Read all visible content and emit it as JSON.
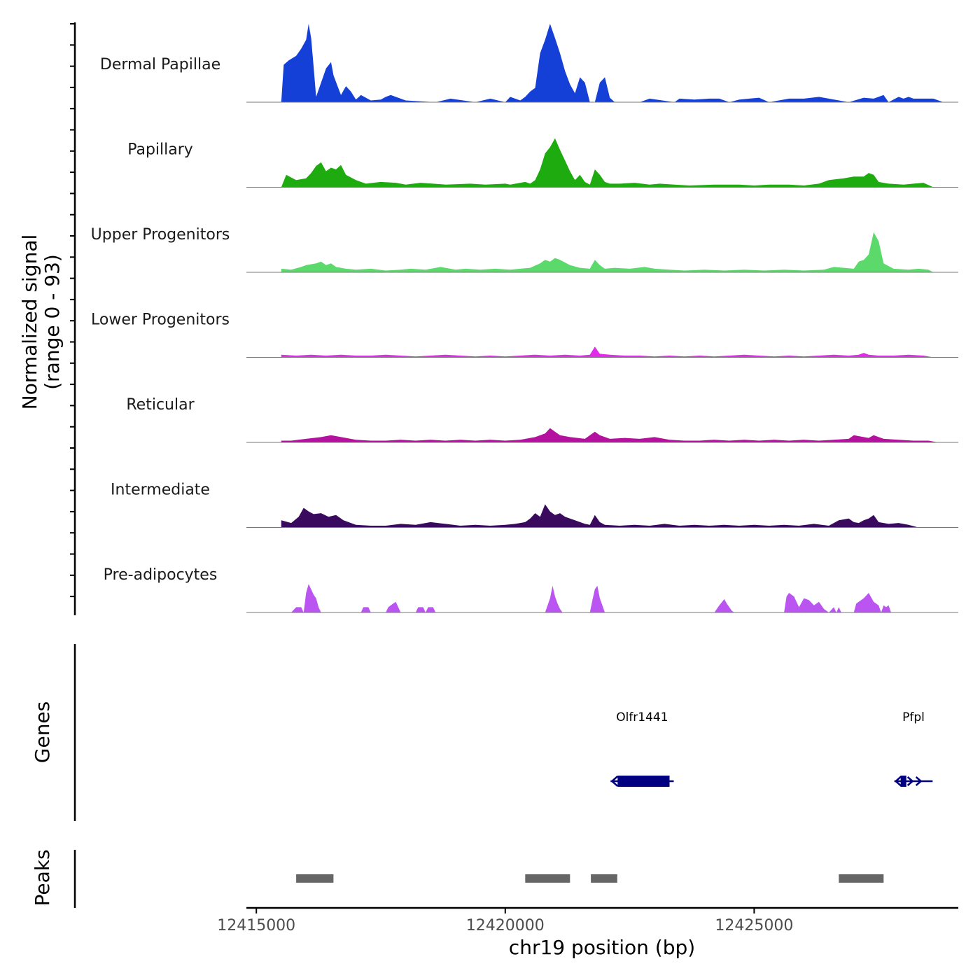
{
  "chart_data": {
    "type": "area",
    "title": "",
    "xlabel": "chr19 position (bp)",
    "ylabel": "Normalized signal",
    "ylabel_range": "(range 0 - 93)",
    "ylim": [
      0,
      93
    ],
    "xlim": [
      12414800,
      12429100
    ],
    "x_ticks": [
      12415000,
      12420000,
      12425000
    ],
    "x_tick_labels": [
      "12415000",
      "12420000",
      "12425000"
    ],
    "series": [
      {
        "name": "Dermal Papillae",
        "color": "#1540d8",
        "x": [
          12415500,
          12415550,
          12415650,
          12415800,
          12415900,
          12416000,
          12416050,
          12416100,
          12416150,
          12416200,
          12416300,
          12416400,
          12416500,
          12416550,
          12416700,
          12416800,
          12416900,
          12417000,
          12417100,
          12417300,
          12417500,
          12417600,
          12417700,
          12418000,
          12418600,
          12418900,
          12419400,
          12419700,
          12420000,
          12420100,
          12420300,
          12420400,
          12420500,
          12420600,
          12420700,
          12420800,
          12420900,
          12421000,
          12421100,
          12421200,
          12421300,
          12421400,
          12421500,
          12421600,
          12421700,
          12421800,
          12421900,
          12422000,
          12422100,
          12422200,
          12422700,
          12422900,
          12423400,
          12423500,
          12423800,
          12424100,
          12424300,
          12424500,
          12424700,
          12424900,
          12425100,
          12425300,
          12425700,
          12426000,
          12426300,
          12426900,
          12427200,
          12427400,
          12427600,
          12427700,
          12427900,
          12428000,
          12428100,
          12428200,
          12428400,
          12428600,
          12428800
        ],
        "y": [
          0,
          42,
          47,
          52,
          60,
          70,
          88,
          72,
          40,
          6,
          22,
          38,
          45,
          30,
          8,
          18,
          12,
          3,
          8,
          2,
          3,
          6,
          8,
          2,
          0,
          4,
          0,
          4,
          0,
          6,
          2,
          6,
          12,
          16,
          55,
          70,
          88,
          72,
          55,
          35,
          20,
          10,
          28,
          22,
          0,
          0,
          22,
          28,
          5,
          0,
          0,
          4,
          0,
          4,
          3,
          4,
          4,
          0,
          3,
          4,
          5,
          0,
          4,
          4,
          6,
          0,
          5,
          4,
          8,
          0,
          6,
          4,
          6,
          4,
          4,
          4,
          0
        ]
      },
      {
        "name": "Papillary",
        "color": "#1dab0f",
        "x": [
          12415500,
          12415600,
          12415800,
          12416000,
          12416100,
          12416200,
          12416300,
          12416400,
          12416500,
          12416600,
          12416700,
          12416800,
          12417000,
          12417200,
          12417500,
          12417800,
          12418000,
          12418300,
          12418800,
          12419300,
          12419600,
          12420000,
          12420100,
          12420400,
          12420500,
          12420600,
          12420700,
          12420800,
          12420900,
          12421000,
          12421100,
          12421200,
          12421300,
          12421400,
          12421500,
          12421600,
          12421700,
          12421800,
          12421900,
          12422000,
          12422100,
          12422300,
          12422600,
          12422900,
          12423100,
          12423400,
          12423700,
          12424200,
          12424700,
          12425000,
          12425300,
          12425700,
          12426000,
          12426300,
          12426500,
          12426800,
          12427000,
          12427200,
          12427300,
          12427400,
          12427500,
          12427700,
          12428000,
          12428200,
          12428400,
          12428600
        ],
        "y": [
          0,
          14,
          8,
          10,
          16,
          24,
          28,
          18,
          22,
          20,
          25,
          14,
          8,
          4,
          6,
          5,
          3,
          5,
          3,
          4,
          3,
          4,
          3,
          6,
          4,
          8,
          20,
          38,
          45,
          55,
          42,
          30,
          18,
          8,
          14,
          6,
          3,
          20,
          14,
          6,
          4,
          4,
          5,
          3,
          4,
          3,
          2,
          3,
          3,
          2,
          3,
          3,
          2,
          4,
          8,
          10,
          12,
          12,
          16,
          14,
          6,
          4,
          3,
          4,
          5,
          0
        ]
      },
      {
        "name": "Upper Progenitors",
        "color": "#5bd96b",
        "x": [
          12415500,
          12415700,
          12415900,
          12416000,
          12416200,
          12416300,
          12416400,
          12416500,
          12416600,
          12416800,
          12417000,
          12417300,
          12417600,
          12417900,
          12418100,
          12418400,
          12418700,
          12419000,
          12419200,
          12419500,
          12419800,
          12420100,
          12420300,
          12420500,
          12420700,
          12420800,
          12420900,
          12421000,
          12421100,
          12421300,
          12421500,
          12421700,
          12421800,
          12421900,
          12422000,
          12422200,
          12422500,
          12422800,
          12423000,
          12423300,
          12423600,
          12424000,
          12424400,
          12424800,
          12425200,
          12425600,
          12426000,
          12426400,
          12426600,
          12426800,
          12427000,
          12427100,
          12427200,
          12427300,
          12427400,
          12427500,
          12427600,
          12427800,
          12428100,
          12428300,
          12428500,
          12428600
        ],
        "y": [
          4,
          3,
          6,
          8,
          10,
          12,
          8,
          10,
          6,
          4,
          3,
          4,
          2,
          3,
          4,
          3,
          6,
          3,
          4,
          3,
          4,
          3,
          4,
          5,
          10,
          14,
          12,
          16,
          14,
          8,
          5,
          4,
          14,
          8,
          4,
          5,
          4,
          6,
          4,
          3,
          2,
          3,
          2,
          3,
          2,
          3,
          2,
          3,
          6,
          5,
          4,
          12,
          14,
          20,
          45,
          35,
          10,
          4,
          3,
          4,
          3,
          0
        ]
      },
      {
        "name": "Lower Progenitors",
        "color": "#e02ce8",
        "x": [
          12415500,
          12415800,
          12416100,
          12416400,
          12416700,
          12417000,
          12417300,
          12417600,
          12417900,
          12418200,
          12418500,
          12418800,
          12419100,
          12419400,
          12419700,
          12420000,
          12420300,
          12420600,
          12420900,
          12421200,
          12421500,
          12421700,
          12421800,
          12421900,
          12422100,
          12422400,
          12422700,
          12423000,
          12423300,
          12423600,
          12423900,
          12424200,
          12424500,
          12424800,
          12425100,
          12425400,
          12425700,
          12426000,
          12426300,
          12426600,
          12426900,
          12427100,
          12427200,
          12427300,
          12427500,
          12427800,
          12428100,
          12428400,
          12428600
        ],
        "y": [
          3,
          2,
          3,
          2,
          3,
          2,
          2,
          3,
          2,
          1,
          2,
          3,
          2,
          1,
          2,
          1,
          2,
          3,
          2,
          3,
          2,
          3,
          12,
          4,
          3,
          2,
          2,
          1,
          2,
          1,
          2,
          1,
          2,
          3,
          2,
          1,
          2,
          1,
          2,
          3,
          2,
          3,
          5,
          3,
          2,
          2,
          3,
          2,
          0
        ]
      },
      {
        "name": "Reticular",
        "color": "#b3119e",
        "x": [
          12415500,
          12415700,
          12416000,
          12416300,
          12416500,
          12416800,
          12417000,
          12417300,
          12417600,
          12417900,
          12418200,
          12418500,
          12418800,
          12419100,
          12419400,
          12419700,
          12420000,
          12420300,
          12420600,
          12420800,
          12420900,
          12421000,
          12421100,
          12421300,
          12421600,
          12421800,
          12421900,
          12422100,
          12422400,
          12422700,
          12423000,
          12423300,
          12423600,
          12423900,
          12424200,
          12424500,
          12424800,
          12425100,
          12425400,
          12425700,
          12426000,
          12426300,
          12426600,
          12426900,
          12427000,
          12427200,
          12427300,
          12427400,
          12427600,
          12427900,
          12428200,
          12428500,
          12428700
        ],
        "y": [
          2,
          2,
          4,
          6,
          8,
          5,
          3,
          2,
          2,
          3,
          2,
          3,
          2,
          3,
          2,
          3,
          2,
          3,
          6,
          10,
          16,
          12,
          8,
          6,
          4,
          12,
          8,
          4,
          5,
          4,
          6,
          3,
          2,
          2,
          3,
          2,
          3,
          2,
          3,
          2,
          3,
          2,
          3,
          4,
          8,
          6,
          5,
          8,
          4,
          3,
          2,
          2,
          0
        ]
      },
      {
        "name": "Intermediate",
        "color": "#3a0a5e",
        "x": [
          12415500,
          12415700,
          12415850,
          12415950,
          12416050,
          12416150,
          12416300,
          12416450,
          12416600,
          12416750,
          12417000,
          12417300,
          12417600,
          12417900,
          12418200,
          12418500,
          12418800,
          12419100,
          12419400,
          12419700,
          12420000,
          12420200,
          12420400,
          12420500,
          12420600,
          12420700,
          12420800,
          12420900,
          12421000,
          12421100,
          12421200,
          12421400,
          12421600,
          12421700,
          12421800,
          12421900,
          12422000,
          12422300,
          12422600,
          12422900,
          12423200,
          12423500,
          12423800,
          12424100,
          12424400,
          12424700,
          12425000,
          12425300,
          12425600,
          12425900,
          12426200,
          12426500,
          12426700,
          12426900,
          12427000,
          12427100,
          12427200,
          12427300,
          12427400,
          12427500,
          12427700,
          12427900,
          12428100,
          12428300
        ],
        "y": [
          8,
          5,
          12,
          22,
          18,
          15,
          16,
          12,
          14,
          8,
          3,
          2,
          2,
          4,
          3,
          6,
          4,
          2,
          3,
          2,
          3,
          4,
          6,
          10,
          16,
          12,
          26,
          18,
          14,
          16,
          12,
          8,
          4,
          3,
          14,
          6,
          3,
          2,
          3,
          2,
          4,
          2,
          3,
          2,
          3,
          2,
          3,
          2,
          3,
          2,
          4,
          2,
          8,
          10,
          6,
          5,
          8,
          10,
          14,
          6,
          4,
          5,
          3,
          0
        ]
      },
      {
        "name": "Pre-adipocytes",
        "color": "#bb55f2",
        "x": [
          12415700,
          12415800,
          12415900,
          12415950,
          12416000,
          12416050,
          12416100,
          12416150,
          12416200,
          12416250,
          12416300,
          12417100,
          12417150,
          12417250,
          12417300,
          12417600,
          12417650,
          12417700,
          12417800,
          12417850,
          12417900,
          12418200,
          12418250,
          12418350,
          12418400,
          12418450,
          12418550,
          12418600,
          12420800,
          12420850,
          12420900,
          12420950,
          12421000,
          12421050,
          12421100,
          12421150,
          12421700,
          12421750,
          12421800,
          12421850,
          12421900,
          12421950,
          12422000,
          12424200,
          12424300,
          12424400,
          12424450,
          12424500,
          12424550,
          12424600,
          12425600,
          12425650,
          12425700,
          12425800,
          12425900,
          12426000,
          12426100,
          12426200,
          12426300,
          12426400,
          12426500,
          12426600,
          12426650,
          12426700,
          12426750,
          12427000,
          12427050,
          12427200,
          12427300,
          12427400,
          12427500,
          12427550,
          12427600,
          12427650,
          12427700,
          12427750
        ],
        "y": [
          0,
          6,
          6,
          0,
          22,
          32,
          26,
          20,
          16,
          6,
          0,
          0,
          6,
          6,
          0,
          0,
          6,
          8,
          12,
          6,
          0,
          0,
          6,
          6,
          0,
          6,
          6,
          0,
          0,
          8,
          16,
          30,
          18,
          10,
          4,
          0,
          0,
          14,
          26,
          30,
          16,
          8,
          0,
          0,
          8,
          15,
          10,
          6,
          2,
          0,
          0,
          18,
          22,
          18,
          6,
          16,
          14,
          8,
          12,
          4,
          0,
          6,
          0,
          6,
          0,
          0,
          10,
          16,
          22,
          12,
          8,
          0,
          8,
          6,
          8,
          0
        ]
      }
    ],
    "genes": [
      {
        "name": "Olfr1441",
        "start": 12422200,
        "end": 12423300,
        "strand": "-"
      },
      {
        "name": "Pfpl",
        "start": 12427900,
        "end": 12428500,
        "strand": "+"
      }
    ],
    "peaks": [
      {
        "start": 12415800,
        "end": 12416550
      },
      {
        "start": 12420400,
        "end": 12421300
      },
      {
        "start": 12421720,
        "end": 12422250
      },
      {
        "start": 12426700,
        "end": 12427600
      }
    ],
    "y_axis_title": "Normalized signal",
    "genes_axis_title": "Genes",
    "peaks_axis_title": "Peaks"
  }
}
